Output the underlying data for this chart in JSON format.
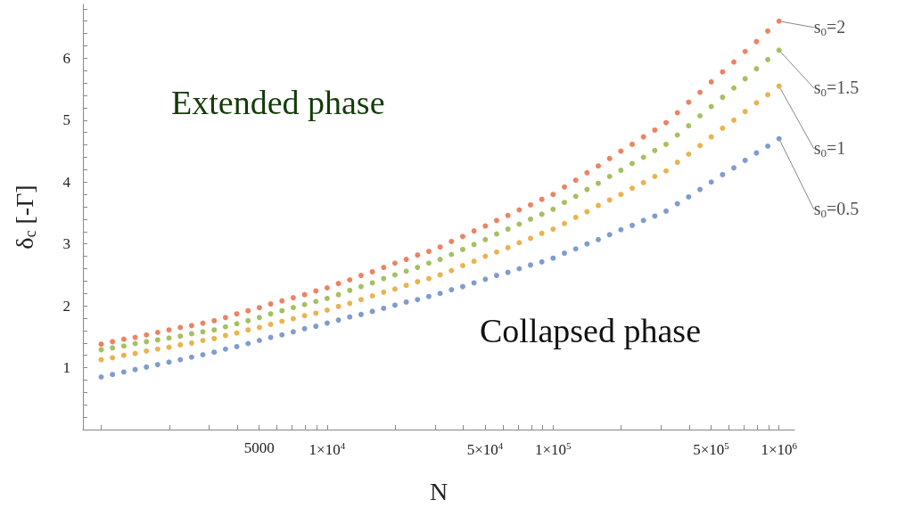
{
  "chart_data": {
    "type": "scatter",
    "xlabel": "N",
    "ylabel": "δ$_{c}$ [-Γ]",
    "log": "x",
    "marker": "circle",
    "grid": false,
    "legend": false,
    "annotations": [
      "Extended phase",
      "Collapsed phase"
    ],
    "xlim": [
      830,
      1170000
    ],
    "xticks": [
      {
        "value": 1000,
        "label": null
      },
      {
        "value": 2000,
        "label": null
      },
      {
        "value": 3000,
        "label": null
      },
      {
        "value": 4000,
        "label": null
      },
      5000,
      {
        "value": 6000,
        "label": null
      },
      {
        "value": 7000,
        "label": null
      },
      {
        "value": 8000,
        "label": null
      },
      {
        "value": 9000,
        "label": null
      },
      {
        "value": 10000,
        "label": "1×10$^{4}$"
      },
      {
        "value": 20000,
        "label": null
      },
      {
        "value": 30000,
        "label": null
      },
      {
        "value": 40000,
        "label": null
      },
      {
        "value": 50000,
        "label": "5×10$^{4}$"
      },
      {
        "value": 60000,
        "label": null
      },
      {
        "value": 70000,
        "label": null
      },
      {
        "value": 80000,
        "label": null
      },
      {
        "value": 90000,
        "label": null
      },
      {
        "value": 100000,
        "label": "1×10$^{5}$"
      },
      {
        "value": 200000,
        "label": null
      },
      {
        "value": 300000,
        "label": null
      },
      {
        "value": 400000,
        "label": null
      },
      {
        "value": 500000,
        "label": "5×10$^{5}$"
      },
      {
        "value": 600000,
        "label": null
      },
      {
        "value": 700000,
        "label": null
      },
      {
        "value": 800000,
        "label": null
      },
      {
        "value": 900000,
        "label": null
      },
      {
        "value": 1000000,
        "label": "1×10$^{6}$"
      }
    ],
    "ylim": [
      0,
      6.87
    ],
    "yticks": [
      {
        "value": 0.2,
        "label": null
      },
      {
        "value": 0.4,
        "label": null
      },
      {
        "value": 0.6,
        "label": null
      },
      {
        "value": 0.8,
        "label": null
      },
      1,
      {
        "value": 1.2,
        "label": null
      },
      {
        "value": 1.4,
        "label": null
      },
      {
        "value": 1.6,
        "label": null
      },
      {
        "value": 1.8,
        "label": null
      },
      2,
      {
        "value": 2.2,
        "label": null
      },
      {
        "value": 2.4,
        "label": null
      },
      {
        "value": 2.6,
        "label": null
      },
      {
        "value": 2.8,
        "label": null
      },
      3,
      {
        "value": 3.2,
        "label": null
      },
      {
        "value": 3.4,
        "label": null
      },
      {
        "value": 3.6,
        "label": null
      },
      {
        "value": 3.8,
        "label": null
      },
      4,
      {
        "value": 4.2,
        "label": null
      },
      {
        "value": 4.4,
        "label": null
      },
      {
        "value": 4.6,
        "label": null
      },
      {
        "value": 4.8,
        "label": null
      },
      5,
      {
        "value": 5.2,
        "label": null
      },
      {
        "value": 5.4,
        "label": null
      },
      {
        "value": 5.6,
        "label": null
      },
      {
        "value": 5.8,
        "label": null
      },
      6,
      {
        "value": 6.2,
        "label": null
      },
      {
        "value": 6.4,
        "label": null
      },
      {
        "value": 6.6,
        "label": null
      },
      {
        "value": 6.8,
        "label": null
      }
    ],
    "x": [
      1000,
      1122,
      1259,
      1413,
      1585,
      1778,
      1995,
      2239,
      2512,
      2818,
      3162,
      3548,
      3981,
      4467,
      5012,
      5623,
      6310,
      7079,
      7943,
      8913,
      10000,
      11220,
      12589,
      14125,
      15849,
      17783,
      19953,
      22387,
      25119,
      28184,
      31623,
      35481,
      39811,
      44668,
      50119,
      56234,
      63096,
      70795,
      79433,
      89125,
      100000,
      112202,
      125893,
      141254,
      158489,
      177828,
      199526,
      223872,
      251189,
      281838,
      316228,
      354813,
      398107,
      446684,
      501187,
      562341,
      630957,
      707946,
      794328,
      891251,
      1000000
    ],
    "series": [
      {
        "name": "s$_{0}$=2",
        "color": "#e8643c",
        "values": [
          1.38,
          1.42,
          1.46,
          1.49,
          1.53,
          1.57,
          1.61,
          1.65,
          1.68,
          1.72,
          1.76,
          1.81,
          1.87,
          1.92,
          1.97,
          2.03,
          2.08,
          2.13,
          2.18,
          2.24,
          2.29,
          2.36,
          2.42,
          2.49,
          2.55,
          2.62,
          2.69,
          2.75,
          2.82,
          2.88,
          2.95,
          3.04,
          3.12,
          3.21,
          3.29,
          3.38,
          3.46,
          3.55,
          3.63,
          3.72,
          3.8,
          3.92,
          4.03,
          4.15,
          4.26,
          4.38,
          4.5,
          4.61,
          4.73,
          4.84,
          4.96,
          5.12,
          5.29,
          5.45,
          5.62,
          5.78,
          5.94,
          6.11,
          6.27,
          6.44,
          6.6
        ]
      },
      {
        "name": "s$_{0}$=1.5",
        "color": "#8fb03a",
        "values": [
          1.29,
          1.32,
          1.35,
          1.39,
          1.42,
          1.45,
          1.48,
          1.51,
          1.55,
          1.58,
          1.61,
          1.66,
          1.71,
          1.76,
          1.81,
          1.87,
          1.92,
          1.97,
          2.02,
          2.07,
          2.12,
          2.18,
          2.25,
          2.31,
          2.37,
          2.44,
          2.5,
          2.56,
          2.62,
          2.69,
          2.75,
          2.83,
          2.91,
          2.99,
          3.07,
          3.16,
          3.24,
          3.32,
          3.4,
          3.48,
          3.56,
          3.67,
          3.77,
          3.88,
          3.98,
          4.09,
          4.19,
          4.3,
          4.4,
          4.51,
          4.61,
          4.76,
          4.91,
          5.07,
          5.22,
          5.37,
          5.52,
          5.67,
          5.83,
          5.98,
          6.13
        ]
      },
      {
        "name": "s$_{0}$=1",
        "color": "#e5a024",
        "values": [
          1.13,
          1.16,
          1.2,
          1.23,
          1.27,
          1.3,
          1.33,
          1.37,
          1.4,
          1.44,
          1.47,
          1.52,
          1.56,
          1.61,
          1.65,
          1.7,
          1.75,
          1.79,
          1.84,
          1.88,
          1.93,
          1.99,
          2.04,
          2.1,
          2.16,
          2.22,
          2.27,
          2.33,
          2.39,
          2.44,
          2.5,
          2.57,
          2.65,
          2.72,
          2.8,
          2.87,
          2.94,
          3.02,
          3.09,
          3.17,
          3.24,
          3.33,
          3.43,
          3.52,
          3.62,
          3.71,
          3.8,
          3.9,
          3.99,
          4.09,
          4.18,
          4.32,
          4.45,
          4.59,
          4.73,
          4.87,
          5.0,
          5.14,
          5.28,
          5.41,
          5.55
        ]
      },
      {
        "name": "s$_{0}$=0.5",
        "color": "#5f85bf",
        "values": [
          0.85,
          0.89,
          0.93,
          0.97,
          1.01,
          1.05,
          1.09,
          1.13,
          1.17,
          1.21,
          1.25,
          1.3,
          1.34,
          1.39,
          1.44,
          1.49,
          1.53,
          1.58,
          1.63,
          1.67,
          1.72,
          1.77,
          1.82,
          1.86,
          1.91,
          1.96,
          2.01,
          2.06,
          2.1,
          2.15,
          2.2,
          2.26,
          2.31,
          2.37,
          2.43,
          2.49,
          2.54,
          2.6,
          2.66,
          2.71,
          2.77,
          2.85,
          2.92,
          3.0,
          3.07,
          3.15,
          3.23,
          3.3,
          3.38,
          3.45,
          3.53,
          3.65,
          3.76,
          3.88,
          4.0,
          4.12,
          4.23,
          4.35,
          4.47,
          4.58,
          4.7
        ]
      }
    ]
  }
}
